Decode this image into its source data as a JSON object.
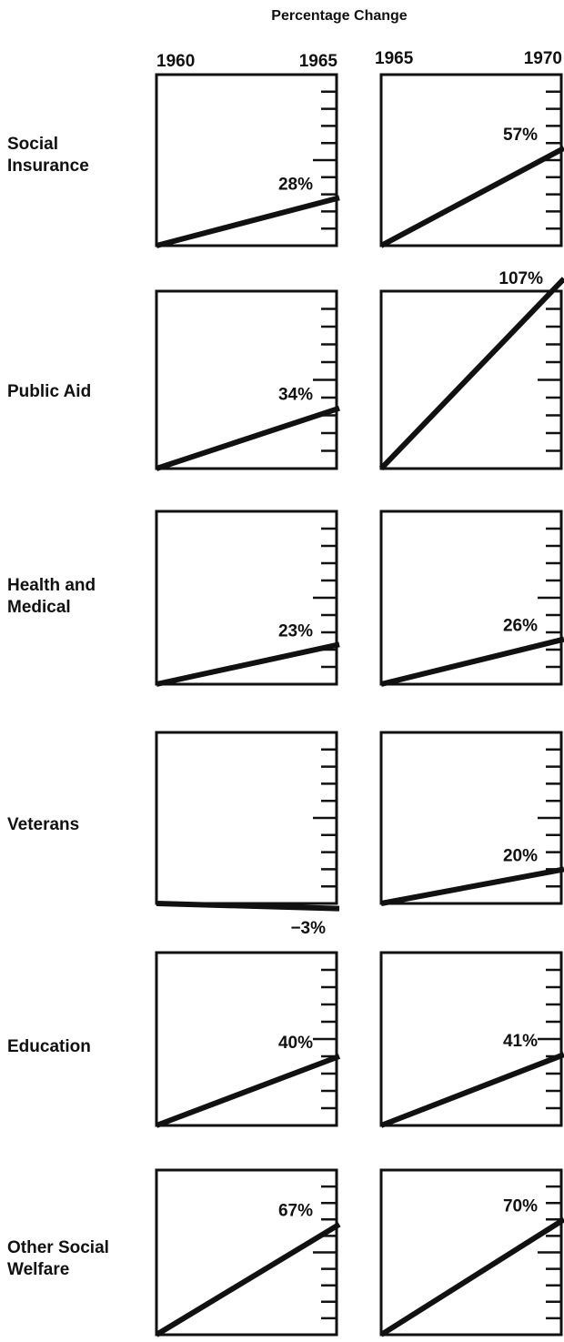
{
  "title": "Percentage Change",
  "periods": [
    {
      "start": "1960",
      "end": "1965"
    },
    {
      "start": "1965",
      "end": "1970"
    }
  ],
  "chart_data": {
    "type": "line",
    "title": "Percentage Change",
    "ylim": [
      0,
      100
    ],
    "tick_step": 10,
    "series": [
      {
        "name": "Social Insurance",
        "lines": [
          "Social",
          "Insurance"
        ],
        "changes": [
          "28%",
          "57%"
        ],
        "values": [
          28,
          57
        ]
      },
      {
        "name": "Public Aid",
        "lines": [
          "Public Aid"
        ],
        "changes": [
          "34%",
          "107%"
        ],
        "values": [
          34,
          107
        ]
      },
      {
        "name": "Health and Medical",
        "lines": [
          "Health and",
          "Medical"
        ],
        "changes": [
          "23%",
          "26%"
        ],
        "values": [
          23,
          26
        ]
      },
      {
        "name": "Veterans",
        "lines": [
          "Veterans"
        ],
        "changes": [
          "−3%",
          "20%"
        ],
        "values": [
          -3,
          20
        ]
      },
      {
        "name": "Education",
        "lines": [
          "Education"
        ],
        "changes": [
          "40%",
          "41%"
        ],
        "values": [
          40,
          41
        ]
      },
      {
        "name": "Other Social Welfare",
        "lines": [
          "Other Social",
          "Welfare"
        ],
        "changes": [
          "67%",
          "70%"
        ],
        "values": [
          67,
          70
        ]
      }
    ]
  }
}
